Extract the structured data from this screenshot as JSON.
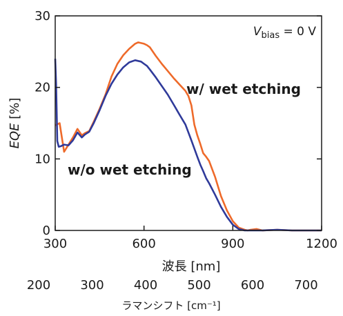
{
  "chart_data": {
    "type": "line",
    "xlabel": "波長 [nm]",
    "ylabel_main": "EQE",
    "ylabel_unit": " [%]",
    "xlim": [
      300,
      1200
    ],
    "ylim": [
      0,
      30
    ],
    "xticks": [
      300,
      600,
      900,
      1200
    ],
    "yticks": [
      0,
      10,
      20,
      30
    ],
    "grid": false,
    "annotation": {
      "symbol": "V",
      "sub": "bias",
      "rest": " = 0 V"
    },
    "secondary_axis": {
      "label": "ラマンシフト [cm⁻¹]",
      "ticks": [
        "200",
        "300",
        "400",
        "500",
        "600",
        "700"
      ]
    },
    "series": [
      {
        "name": "w/ wet etching",
        "color": "#ee6a2a",
        "x": [
          300,
          305,
          315,
          330,
          345,
          360,
          375,
          390,
          400,
          415,
          430,
          450,
          470,
          490,
          510,
          530,
          550,
          570,
          580,
          590,
          600,
          610,
          620,
          640,
          660,
          680,
          700,
          720,
          740,
          750,
          760,
          770,
          780,
          790,
          800,
          810,
          820,
          840,
          860,
          880,
          900,
          920,
          940,
          950,
          960,
          980,
          1000,
          1050,
          1100,
          1150,
          1200
        ],
        "y": [
          14.7,
          14.8,
          15.0,
          11.0,
          12.0,
          13.0,
          14.2,
          13.3,
          13.6,
          13.9,
          15.2,
          17.0,
          19.0,
          21.5,
          23.3,
          24.5,
          25.4,
          26.1,
          26.3,
          26.2,
          26.1,
          25.9,
          25.6,
          24.4,
          23.3,
          22.3,
          21.3,
          20.4,
          19.5,
          18.8,
          17.5,
          14.8,
          13.3,
          12.1,
          10.8,
          10.3,
          9.7,
          7.5,
          4.8,
          2.8,
          1.3,
          0.4,
          0.1,
          0.0,
          0.1,
          0.2,
          0.0,
          0.1,
          0.0,
          0.0,
          0.0
        ]
      },
      {
        "name": "w/o wet etching",
        "color": "#2f3a9a",
        "x": [
          300,
          303,
          307,
          312,
          320,
          330,
          345,
          360,
          375,
          390,
          400,
          415,
          430,
          450,
          470,
          490,
          510,
          530,
          550,
          570,
          580,
          590,
          600,
          610,
          620,
          640,
          660,
          680,
          700,
          720,
          740,
          760,
          780,
          790,
          800,
          810,
          820,
          840,
          860,
          880,
          900,
          920,
          940,
          950,
          960,
          980,
          1000,
          1050,
          1100,
          1150,
          1200
        ],
        "y": [
          24.0,
          20.5,
          12.5,
          11.7,
          11.8,
          12.0,
          11.9,
          12.6,
          13.7,
          13.0,
          13.4,
          13.8,
          15.0,
          16.8,
          18.8,
          20.5,
          21.8,
          22.8,
          23.5,
          23.8,
          23.7,
          23.6,
          23.3,
          23.0,
          22.5,
          21.4,
          20.2,
          19.0,
          17.6,
          16.2,
          14.8,
          12.6,
          10.3,
          9.2,
          8.3,
          7.3,
          6.6,
          5.0,
          3.3,
          1.9,
          0.8,
          0.2,
          0.0,
          0.0,
          0.0,
          0.0,
          0.0,
          0.1,
          0.0,
          0.0,
          0.0
        ]
      }
    ]
  }
}
